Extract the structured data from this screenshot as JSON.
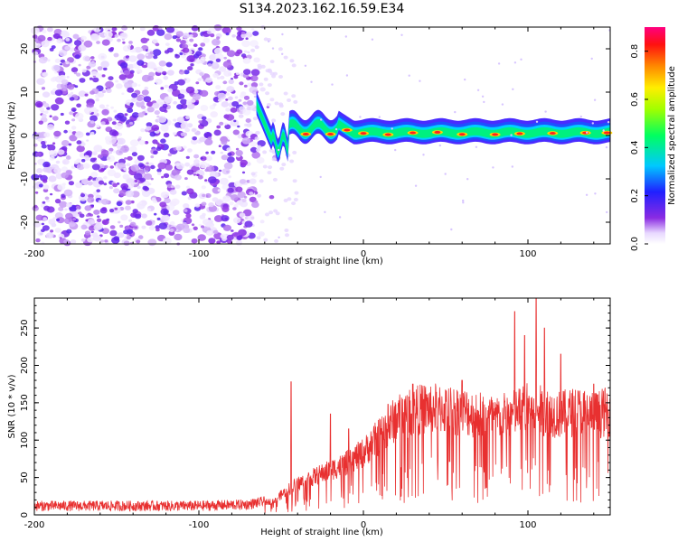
{
  "title": "S134.2023.162.16.59.E34",
  "chart_data": [
    {
      "type": "heatmap",
      "xlabel": "Height of straight line (km)",
      "ylabel": "Frequency (Hz)",
      "xlim": [
        -200,
        150
      ],
      "ylim": [
        -25,
        25
      ],
      "x_ticks": [
        -200,
        -100,
        0,
        100
      ],
      "y_ticks": [
        -20,
        -10,
        0,
        10,
        20
      ],
      "colorbar": {
        "label": "Normalized spectral amplitude",
        "range": [
          0.0,
          0.9
        ],
        "ticks": [
          0.0,
          0.2,
          0.4,
          0.6,
          0.8
        ],
        "colormap": "hsv-purple-blue-cyan-green-yellow-orange-red-magenta"
      },
      "features": {
        "noise_region_x": [
          -200,
          -65
        ],
        "signal_onset_x": -65,
        "signal_band_center_hz": 0.5,
        "signal_band_width_hz": 2.5,
        "strong_peaks_x": [
          -35,
          -20,
          -10,
          0,
          15,
          30,
          45,
          60,
          80,
          95,
          115,
          135,
          148
        ]
      }
    },
    {
      "type": "line",
      "xlabel": "Height of straight line (km)",
      "ylabel": "SNR (10 * v/v)",
      "xlim": [
        -200,
        150
      ],
      "ylim": [
        0,
        290
      ],
      "x_ticks": [
        -200,
        -100,
        0,
        100
      ],
      "y_ticks": [
        0,
        50,
        100,
        150,
        200,
        250
      ],
      "series": [
        {
          "color": "#e83030",
          "envelope": {
            "x": [
              -200,
              -150,
              -100,
              -70,
              -55,
              -45,
              -40,
              -30,
              -20,
              -10,
              0,
              10,
              20,
              30,
              40,
              60,
              80,
              90,
              100,
              110,
              120,
              130,
              140,
              150
            ],
            "y": [
              12,
              12,
              12,
              14,
              20,
              38,
              45,
              55,
              65,
              75,
              90,
              115,
              140,
              150,
              155,
              150,
              140,
              145,
              155,
              150,
              145,
              150,
              145,
              150
            ]
          },
          "spikes": [
            {
              "x": -44,
              "y": 178
            },
            {
              "x": -20,
              "y": 135
            },
            {
              "x": -9,
              "y": 115
            },
            {
              "x": 15,
              "y": 148
            },
            {
              "x": 30,
              "y": 175
            },
            {
              "x": 60,
              "y": 180
            },
            {
              "x": 92,
              "y": 272
            },
            {
              "x": 98,
              "y": 240
            },
            {
              "x": 105,
              "y": 290
            },
            {
              "x": 110,
              "y": 250
            },
            {
              "x": 120,
              "y": 215
            },
            {
              "x": 140,
              "y": 175
            }
          ]
        }
      ]
    }
  ]
}
